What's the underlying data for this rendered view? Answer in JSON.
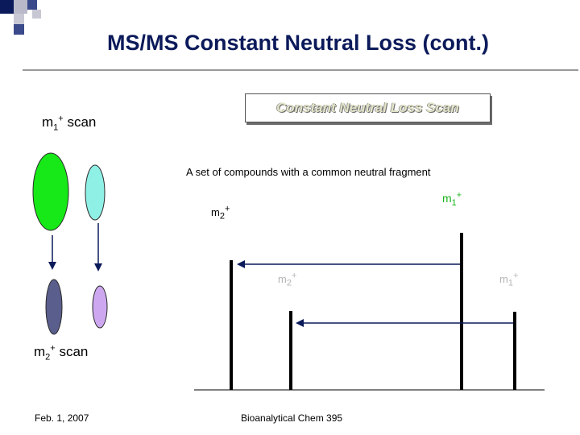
{
  "slide": {
    "title": "MS/MS Constant Neutral Loss (cont.)",
    "scan_labels": {
      "m1": {
        "base": "m",
        "sub": "1",
        "sup": "+",
        "suffix": " scan"
      },
      "m2": {
        "base": "m",
        "sub": "2",
        "sup": "+",
        "suffix": " scan"
      }
    },
    "box_label": "Constant Neutral Loss Scan",
    "caption": "A set of compounds with a common neutral fragment",
    "ion_labels": {
      "m2_top": {
        "base": "m",
        "sub": "2",
        "sup": "+"
      },
      "m1_top": {
        "base": "m",
        "sub": "1",
        "sup": "+"
      },
      "m2_faint": {
        "base": "m",
        "sub": "2",
        "sup": "+"
      },
      "m1_faint": {
        "base": "m",
        "sub": "1",
        "sup": "+"
      }
    },
    "footer": {
      "date": "Feb. 1, 2007",
      "course": "Bioanalytical Chem 395"
    }
  },
  "colors": {
    "title": "#0b1a5a",
    "ellipse_green": "#17e817",
    "ellipse_cyan": "#8ff0e6",
    "ellipse_slate": "#5a5e8c",
    "ellipse_lavender": "#cda8f0",
    "m1_label": "#19b419",
    "arrow": "#0b1a5a",
    "corner_blue": "#0b1a5a",
    "corner_grey": "#b9b9c9"
  },
  "icons": [
    "green-ellipse",
    "cyan-ellipse",
    "slate-ellipse",
    "lavender-ellipse",
    "down-arrow",
    "left-arrow"
  ]
}
